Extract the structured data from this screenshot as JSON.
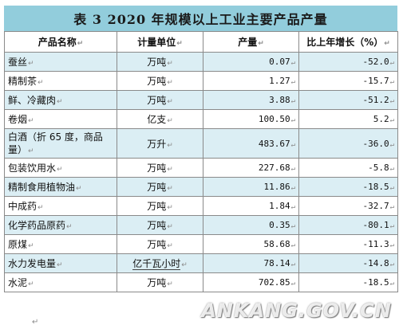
{
  "document": {
    "title": "表 3    2020 年规模以上工业主要产品产量",
    "columns": [
      "产品名称",
      "计量单位",
      "产量",
      "比上年增长（%）"
    ],
    "rows": [
      {
        "name": "蚕丝",
        "unit": "万吨",
        "value": "0.07",
        "change": "-52.0"
      },
      {
        "name": "精制茶",
        "unit": "万吨",
        "value": "1.27",
        "change": "-15.7"
      },
      {
        "name": "鲜、冷藏肉",
        "unit": "万吨",
        "value": "3.88",
        "change": "-51.2"
      },
      {
        "name": "卷烟",
        "unit": "亿支",
        "value": "100.50",
        "change": "5.2"
      },
      {
        "name": "白酒（折 65 度，商品量）",
        "unit": "万升",
        "value": "483.67",
        "change": "-36.0"
      },
      {
        "name": "包装饮用水",
        "unit": "万吨",
        "value": "227.68",
        "change": "-5.8"
      },
      {
        "name": "精制食用植物油",
        "unit": "万吨",
        "value": "11.86",
        "change": "-18.5"
      },
      {
        "name": "中成药",
        "unit": "万吨",
        "value": "1.84",
        "change": "-32.7"
      },
      {
        "name": "化学药品原药",
        "unit": "万吨",
        "value": "0.35",
        "change": "-80.1"
      },
      {
        "name": "原煤",
        "unit": "万吨",
        "value": "58.68",
        "change": "-11.3"
      },
      {
        "name": "水力发电量",
        "unit": "亿千瓦小时",
        "value": "78.14",
        "change": "-14.8"
      },
      {
        "name": "水泥",
        "unit": "万吨",
        "value": "702.85",
        "change": "-18.5"
      }
    ],
    "paragraph_mark": "↵",
    "watermark": "ANKANG.GOV.CN"
  },
  "colors": {
    "title_bar": "#92cddc",
    "band": "#dbeef4",
    "border": "#8a8a8a"
  }
}
